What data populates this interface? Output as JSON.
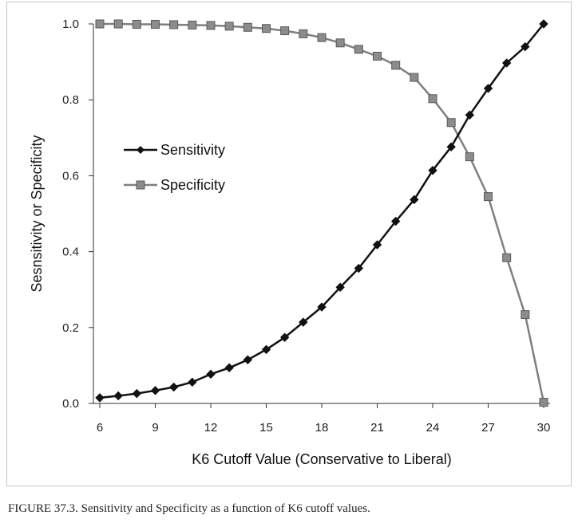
{
  "caption": "FIGURE 37.3.    Sensitivity and Specificity as a function of K6 cutoff values.",
  "chart_data": {
    "type": "line",
    "title": "",
    "xlabel": "K6 Cutoff Value (Conservative to Liberal)",
    "ylabel": "Sesnsitivity or Specificity",
    "xlim": [
      6,
      30
    ],
    "ylim": [
      0,
      1.0
    ],
    "x_ticks": [
      "6",
      "9",
      "12",
      "15",
      "18",
      "21",
      "24",
      "27",
      "30"
    ],
    "y_ticks": [
      "0.0",
      "0.2",
      "0.4",
      "0.6",
      "0.8",
      "1.0"
    ],
    "x": [
      6,
      7,
      8,
      9,
      10,
      11,
      12,
      13,
      14,
      15,
      16,
      17,
      18,
      19,
      20,
      21,
      22,
      23,
      24,
      25,
      26,
      27,
      28,
      29,
      30
    ],
    "series": [
      {
        "name": "Sensitivity",
        "color": "#111111",
        "marker": "diamond",
        "values": [
          0.015,
          0.02,
          0.026,
          0.034,
          0.043,
          0.056,
          0.077,
          0.094,
          0.115,
          0.142,
          0.174,
          0.214,
          0.254,
          0.306,
          0.356,
          0.418,
          0.48,
          0.537,
          0.614,
          0.676,
          0.76,
          0.83,
          0.897,
          0.94,
          1.0
        ]
      },
      {
        "name": "Specificity",
        "color": "#7f7f7f",
        "marker": "square",
        "values": [
          1.0,
          1.0,
          0.999,
          0.999,
          0.998,
          0.997,
          0.996,
          0.994,
          0.991,
          0.988,
          0.982,
          0.974,
          0.964,
          0.95,
          0.933,
          0.915,
          0.891,
          0.859,
          0.803,
          0.74,
          0.65,
          0.545,
          0.384,
          0.234,
          0.003
        ]
      }
    ],
    "grid": false,
    "legend_position": "left-middle"
  }
}
